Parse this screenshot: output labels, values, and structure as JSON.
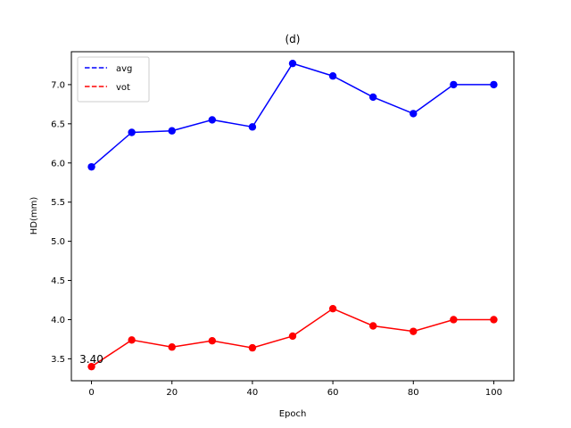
{
  "chart_data": {
    "type": "line",
    "title": "(d)",
    "xlabel": "Epoch",
    "ylabel": "HD(mm)",
    "xlim": [
      -5,
      105
    ],
    "ylim": [
      3.22,
      7.42
    ],
    "xticks": [
      0,
      20,
      40,
      60,
      80,
      100
    ],
    "yticks": [
      3.5,
      4.0,
      4.5,
      5.0,
      5.5,
      6.0,
      6.5,
      7.0
    ],
    "grid": false,
    "legend": "top-left",
    "x": [
      0,
      10,
      20,
      30,
      40,
      50,
      60,
      70,
      80,
      90,
      100
    ],
    "series": [
      {
        "name": "avg",
        "color": "#0000ff",
        "legend_style": "dashed",
        "values": [
          5.95,
          6.39,
          6.41,
          6.55,
          6.46,
          7.27,
          7.11,
          6.84,
          6.63,
          7.0,
          7.0
        ]
      },
      {
        "name": "vot",
        "color": "#ff0000",
        "legend_style": "dashed",
        "values": [
          3.4,
          3.74,
          3.65,
          3.73,
          3.64,
          3.79,
          4.14,
          3.92,
          3.85,
          4.0,
          4.0
        ]
      }
    ],
    "annotations": [
      {
        "text": "3.40",
        "x": 0,
        "y": 3.4
      }
    ]
  }
}
